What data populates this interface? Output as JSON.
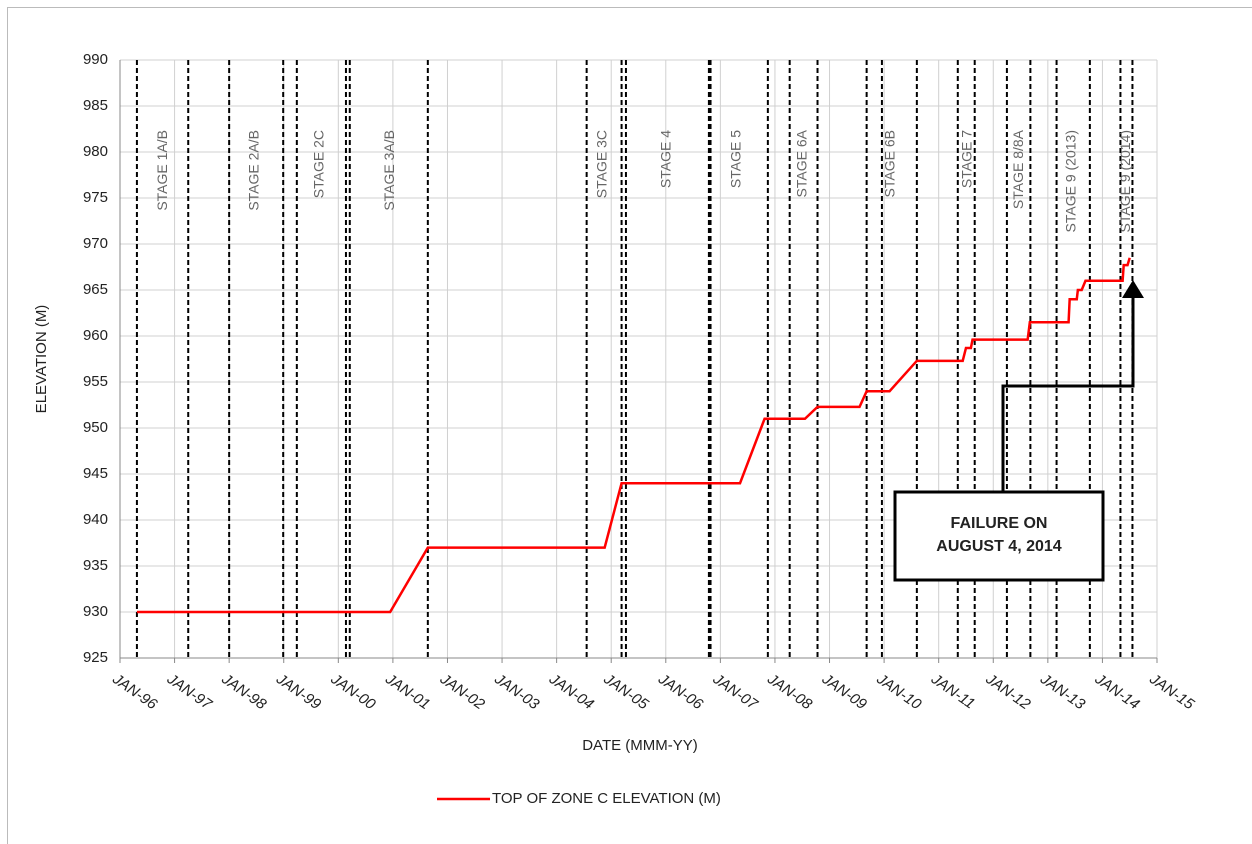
{
  "chart_data": {
    "type": "line",
    "xlabel": "DATE (MMM-YY)",
    "ylabel": "ELEVATION (M)",
    "x": [
      1996.31,
      2000.95,
      2001.64,
      2004.88,
      2005.19,
      2007.36,
      2007.81,
      2008.55,
      2008.78,
      2009.55,
      2009.68,
      2010.1,
      2010.6,
      2011.44,
      2011.5,
      2011.59,
      2011.62,
      2012.63,
      2012.67,
      2013.38,
      2013.4,
      2013.53,
      2013.55,
      2013.62,
      2013.69,
      2014.37,
      2014.39,
      2014.46,
      2014.5
    ],
    "series": [
      {
        "name": "TOP OF ZONE C ELEVATION (M)",
        "color": "#ff0000",
        "values": [
          930,
          930,
          937,
          937,
          944,
          944,
          951,
          951,
          952.3,
          952.3,
          954,
          954,
          957.3,
          957.3,
          958.7,
          958.7,
          959.6,
          959.6,
          961.5,
          961.5,
          964,
          964,
          965,
          965,
          966,
          966,
          967.7,
          967.7,
          968.5
        ]
      }
    ],
    "xlim": [
      1996,
      2015
    ],
    "ylim": [
      925,
      990
    ],
    "xticks": [
      {
        "value": 1996,
        "label": "JAN-96"
      },
      {
        "value": 1997,
        "label": "JAN-97"
      },
      {
        "value": 1998,
        "label": "JAN-98"
      },
      {
        "value": 1999,
        "label": "JAN-99"
      },
      {
        "value": 2000,
        "label": "JAN-00"
      },
      {
        "value": 2001,
        "label": "JAN-01"
      },
      {
        "value": 2002,
        "label": "JAN-02"
      },
      {
        "value": 2003,
        "label": "JAN-03"
      },
      {
        "value": 2004,
        "label": "JAN-04"
      },
      {
        "value": 2005,
        "label": "JAN-05"
      },
      {
        "value": 2006,
        "label": "JAN-06"
      },
      {
        "value": 2007,
        "label": "JAN-07"
      },
      {
        "value": 2008,
        "label": "JAN-08"
      },
      {
        "value": 2009,
        "label": "JAN-09"
      },
      {
        "value": 2010,
        "label": "JAN-10"
      },
      {
        "value": 2011,
        "label": "JAN-11"
      },
      {
        "value": 2012,
        "label": "JAN-12"
      },
      {
        "value": 2013,
        "label": "JAN-13"
      },
      {
        "value": 2014,
        "label": "JAN-14"
      },
      {
        "value": 2015,
        "label": "JAN-15"
      }
    ],
    "yticks": [
      925,
      930,
      935,
      940,
      945,
      950,
      955,
      960,
      965,
      970,
      975,
      980,
      985,
      990
    ],
    "grid": true,
    "stage_lines": [
      1996.31,
      1997.25,
      1998.0,
      1998.99,
      1999.24,
      2000.14,
      2000.21,
      2001.64,
      2004.55,
      2005.19,
      2005.27,
      2006.79,
      2006.82,
      2007.87,
      2008.27,
      2008.78,
      2009.68,
      2009.96,
      2010.6,
      2011.35,
      2011.66,
      2012.25,
      2012.68,
      2013.16,
      2013.77,
      2014.33,
      2014.55
    ],
    "stages": [
      {
        "label": "STAGE 1A/B",
        "x": 1996.79
      },
      {
        "label": "STAGE 2A/B",
        "x": 1998.47
      },
      {
        "label": "STAGE 2C",
        "x": 1999.66
      },
      {
        "label": "STAGE 3A/B",
        "x": 2000.95
      },
      {
        "label": "STAGE 3C",
        "x": 2004.85
      },
      {
        "label": "STAGE 4",
        "x": 2006.02
      },
      {
        "label": "STAGE 5",
        "x": 2007.3
      },
      {
        "label": "STAGE 6A",
        "x": 2008.51
      },
      {
        "label": "STAGE 6B",
        "x": 2010.12
      },
      {
        "label": "STAGE 7",
        "x": 2011.53
      },
      {
        "label": "STAGE 8/8A",
        "x": 2012.48
      },
      {
        "label": "STAGE 9 (2013)",
        "x": 2013.44
      },
      {
        "label": "STAGE 9 (2014)",
        "x": 2014.44
      }
    ],
    "annotation": [
      "FAILURE ON",
      "AUGUST 4, 2014"
    ],
    "legend": "bottom"
  }
}
